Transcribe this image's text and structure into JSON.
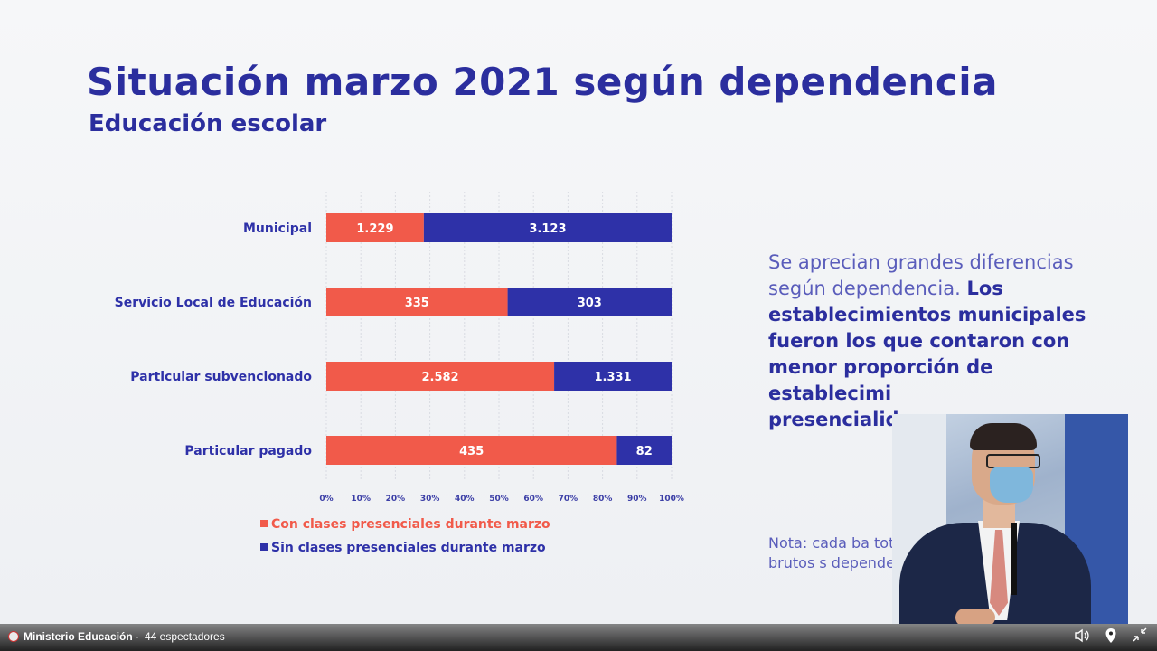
{
  "slide": {
    "title": "Situación marzo 2021 según dependencia",
    "subtitle": "Educación escolar",
    "side_text_normal": "Se aprecian grandes diferencias según dependencia.",
    "side_text_bold": "Los establecimientos municipales fueron los que contaron con menor proporción de establecimi",
    "side_text_bold_tail": "presencialid",
    "note": "Nota: cada ba totales brutos s dependencia."
  },
  "chart_data": {
    "type": "bar",
    "orientation": "horizontal",
    "stacked": "percent",
    "categories": [
      "Municipal",
      "Servicio Local de Educación",
      "Particular subvencionado",
      "Particular pagado"
    ],
    "series": [
      {
        "name": "Con clases presenciales durante marzo",
        "color": "#f15a4a",
        "values": [
          1229,
          335,
          2582,
          435
        ],
        "labels": [
          "1.229",
          "335",
          "2.582",
          "435"
        ]
      },
      {
        "name": "Sin clases presenciales durante marzo",
        "color": "#2e31a8",
        "values": [
          3123,
          303,
          1331,
          82
        ],
        "labels": [
          "3.123",
          "303",
          "1.331",
          "82"
        ]
      }
    ],
    "x_ticks": [
      "0%",
      "10%",
      "20%",
      "30%",
      "40%",
      "50%",
      "60%",
      "70%",
      "80%",
      "90%",
      "100%"
    ],
    "xlim": [
      0,
      100
    ],
    "grid": true,
    "legend_position": "bottom-left"
  },
  "bottombar": {
    "channel": "Ministerio Educación",
    "separator": "·",
    "viewers": "44 espectadores",
    "volume_icon": "volume-icon",
    "location_icon": "location-pin-icon",
    "exit_fullscreen_icon": "exit-fullscreen-icon"
  }
}
